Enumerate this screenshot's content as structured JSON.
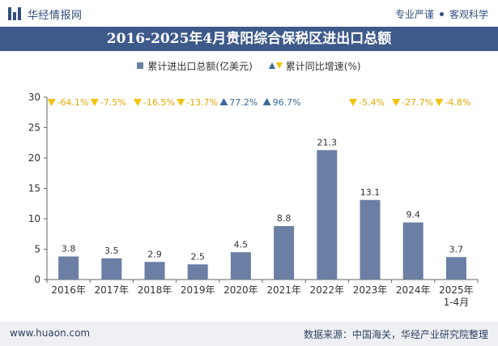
{
  "header": {
    "brand": "华经情报网",
    "tagline_left": "专业严谨",
    "tagline_right": "客观科学"
  },
  "footer": {
    "site": "www.huaon.com",
    "source": "数据来源：中国海关，华经产业研究院整理"
  },
  "colors": {
    "bar": "#6b7fa5",
    "title_bg": "#3d5a8a",
    "rate_up": "#3a6a9a",
    "rate_down": "#f2c200",
    "rate_text_up": "#3a6a9a",
    "rate_text_down": "#e6a800"
  },
  "chart_data": {
    "type": "bar",
    "title": "2016-2025年4月贵阳综合保税区进出口总额",
    "categories": [
      "2016年",
      "2017年",
      "2018年",
      "2019年",
      "2020年",
      "2021年",
      "2022年",
      "2023年",
      "2024年",
      "2025年\n1-4月"
    ],
    "series": [
      {
        "name": "累计进出口总额(亿美元)",
        "type": "bar",
        "values": [
          3.8,
          3.5,
          2.9,
          2.5,
          4.5,
          8.8,
          21.3,
          13.1,
          9.4,
          3.7
        ],
        "labels": [
          "3.8",
          "3.5",
          "2.9",
          "2.5",
          "4.5",
          "8.8",
          "21.3",
          "13.1",
          "9.4",
          "3.7"
        ]
      },
      {
        "name": "累计同比增速(%)",
        "type": "marker",
        "values": [
          -64.1,
          -7.5,
          -16.5,
          -13.7,
          77.2,
          96.7,
          null,
          -5.4,
          -27.7,
          -4.8
        ],
        "labels": [
          "-64.1%",
          "-7.5%",
          "-16.5%",
          "-13.7%",
          "77.2%",
          "96.7%",
          "",
          "-5.4%",
          "-27.7%",
          "-4.8%"
        ]
      }
    ],
    "ylim": [
      0,
      30
    ],
    "yticks": [
      0,
      5,
      10,
      15,
      20,
      25,
      30
    ],
    "grid": false,
    "legend": "top-center"
  }
}
